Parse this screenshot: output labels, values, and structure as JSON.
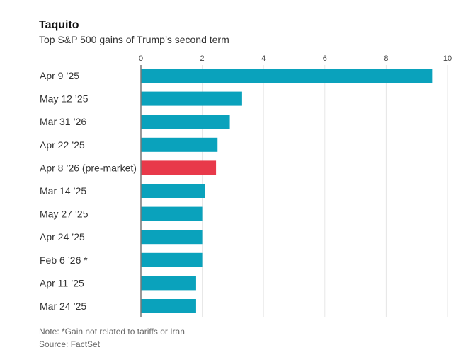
{
  "chart_data": {
    "type": "bar",
    "orientation": "horizontal",
    "title": "Taquito",
    "subtitle": "Top S&P 500 gains of Trump’s second term",
    "categories": [
      "Apr 9 ’25",
      "May 12 ’25",
      "Mar 31 ’26",
      "Apr 22 ’25",
      "Apr 8 ’26 (pre-market)",
      "Mar 14 ’25",
      "May 27 ’25",
      "Apr 24 ’25",
      "Feb 6 ’26 *",
      "Apr 11 ’25",
      "Mar 24 ’25"
    ],
    "values": [
      9.5,
      3.3,
      2.9,
      2.5,
      2.45,
      2.1,
      2.0,
      2.0,
      2.0,
      1.8,
      1.8
    ],
    "highlight_index": 4,
    "xlim": [
      0,
      10
    ],
    "xticks": [
      0,
      2,
      4,
      6,
      8,
      10
    ],
    "grid": true,
    "colors": {
      "default": "#0aa2bc",
      "highlight": "#e8394a",
      "grid": "#e6e6e6",
      "axis": "#777777"
    },
    "note": "Note: *Gain not related to tariffs or Iran",
    "source": "Source: FactSet"
  }
}
